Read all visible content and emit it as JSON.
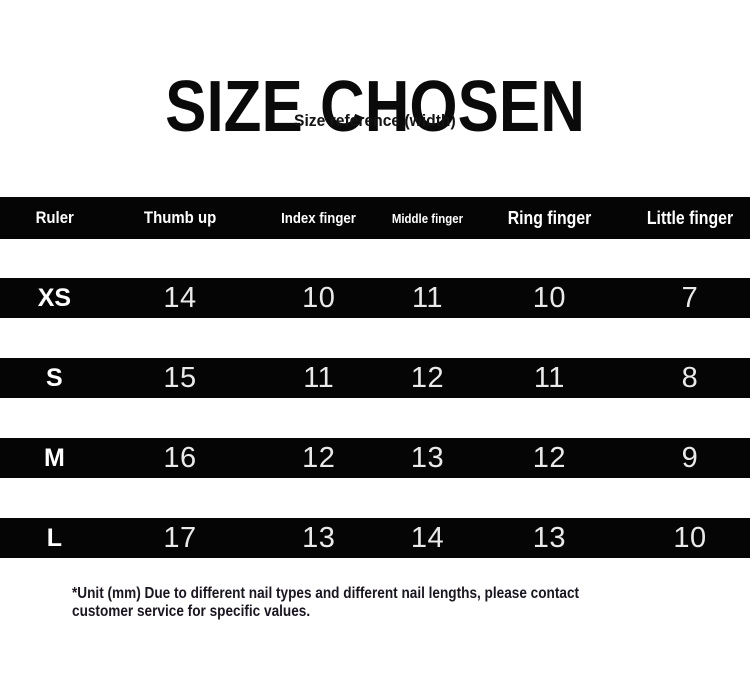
{
  "title": "SIZE CHOSEN",
  "subtitle": "Size reference (width)",
  "footnote": "*Unit (mm) Due to different nail types and different nail lengths, please contact\ncustomer service for specific values.",
  "chart_data": {
    "type": "table",
    "title": "SIZE CHOSEN",
    "subtitle": "Size reference (width)",
    "unit": "mm",
    "columns": [
      "Ruler",
      "Thumb up",
      "Index finger",
      "Middle finger",
      "Ring finger",
      "Little finger"
    ],
    "rows": [
      [
        "XS",
        14,
        10,
        11,
        10,
        7
      ],
      [
        "S",
        15,
        11,
        12,
        11,
        8
      ],
      [
        "M",
        16,
        12,
        13,
        12,
        9
      ],
      [
        "L",
        17,
        13,
        14,
        13,
        10
      ]
    ],
    "note": "*Unit (mm) Due to different nail types and different nail lengths, please contact customer service for specific values."
  },
  "colors": {
    "bar_background": "#050505",
    "header_text": "#ffffff",
    "number_text": "#e9e9e9",
    "page_background": "#ffffff",
    "footnote_text": "#1b1520"
  }
}
